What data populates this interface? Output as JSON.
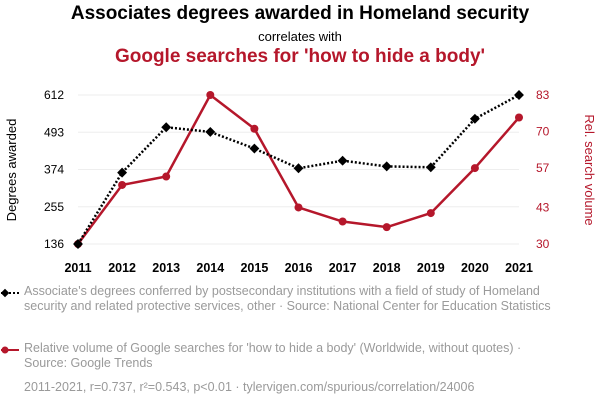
{
  "header": {
    "title": "Associates degrees awarded in Homeland security",
    "subtitle": "correlates with",
    "title2": "Google searches for 'how to hide a body'"
  },
  "colors": {
    "series1": "#000000",
    "series2": "#b5172b",
    "muted": "#9a9a9a"
  },
  "chart_data": {
    "type": "line",
    "x": [
      2011,
      2012,
      2013,
      2014,
      2015,
      2016,
      2017,
      2018,
      2019,
      2020,
      2021
    ],
    "series": [
      {
        "name": "Associate's degrees conferred by postsecondary institutions with a field of study of Homeland security and related protective services, other",
        "axis": "left",
        "values": [
          136,
          364,
          509,
          494,
          441,
          378,
          402,
          384,
          381,
          536,
          612
        ]
      },
      {
        "name": "Relative volume of Google searches for 'how to hide a body' (Worldwide, without quotes)",
        "axis": "right",
        "values": [
          30,
          51,
          54,
          83,
          71,
          43,
          38,
          36,
          41,
          57,
          75
        ]
      }
    ],
    "ylabel": "Degrees awarded",
    "y2label": "Rel. search volume",
    "yticks": [
      136,
      255,
      374,
      493,
      612
    ],
    "y2ticks": [
      30,
      43,
      57,
      70,
      83
    ],
    "ylim": [
      136,
      612
    ],
    "y2lim": [
      30,
      83
    ],
    "grid": true
  },
  "legend": {
    "series1": "Associate's degrees conferred by postsecondary institutions with a field of study of Homeland security and related protective services, other · Source: National Center for Education Statistics",
    "series2": "Relative volume of Google searches for 'how to hide a body' (Worldwide, without quotes) · Source: Google Trends"
  },
  "footer": "2011-2021, r=0.737, r²=0.543, p<0.01 · tylervigen.com/spurious/correlation/24006"
}
